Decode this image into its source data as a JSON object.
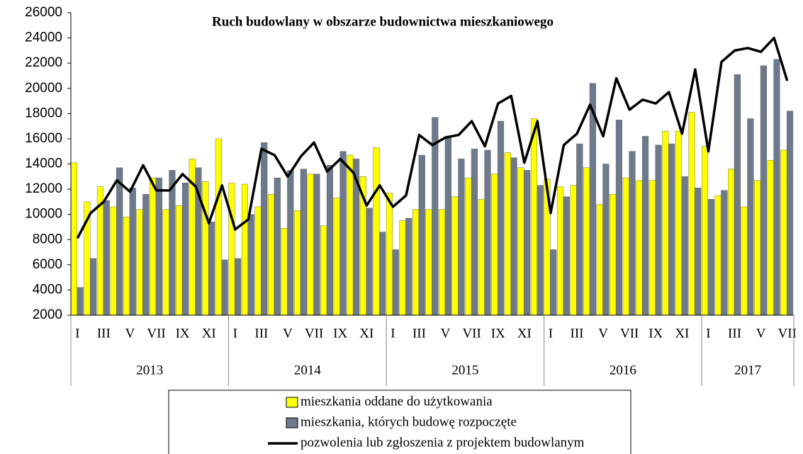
{
  "chart_data": {
    "type": "bar",
    "title": "Ruch budowlany w obszarze budownictwa mieszkaniowego",
    "categories": [
      "I",
      null,
      "III",
      null,
      "V",
      null,
      "VII",
      null,
      "IX",
      null,
      "XI",
      null,
      "I",
      null,
      "III",
      null,
      "V",
      null,
      "VII",
      null,
      "IX",
      null,
      "XI",
      null,
      "I",
      null,
      "III",
      null,
      "V",
      null,
      "VII",
      null,
      "IX",
      null,
      "XI",
      null,
      "I",
      null,
      "III",
      null,
      "V",
      null,
      "VII",
      null,
      "IX",
      null,
      "XI",
      null,
      "I",
      null,
      "III",
      null,
      "V",
      null,
      "VII"
    ],
    "years": [
      "2013",
      "2014",
      "2015",
      "2016",
      "2017"
    ],
    "series": [
      {
        "name": "mieszkania oddane do użytkowania",
        "color": "#ffff00",
        "values": [
          14100,
          11000,
          12200,
          10600,
          9800,
          10400,
          12900,
          10400,
          10700,
          14400,
          12600,
          16000,
          12500,
          12400,
          10600,
          11600,
          8900,
          10300,
          13200,
          9100,
          11300,
          14700,
          13000,
          15300,
          11700,
          9500,
          10400,
          10400,
          10400,
          11400,
          12900,
          11200,
          13200,
          14900,
          13700,
          17600,
          12800,
          12200,
          12300,
          13700,
          10800,
          11600,
          12900,
          12700,
          12700,
          16600,
          16600,
          18100,
          15400,
          11500,
          13600,
          10600,
          12700,
          14300,
          15100
        ]
      },
      {
        "name": "mieszkania, których budowę rozpoczęte",
        "color": "#6e7a8c",
        "values": [
          4200,
          6500,
          11100,
          13700,
          12100,
          11600,
          12900,
          13500,
          12500,
          13700,
          9400,
          6400,
          6500,
          10000,
          15700,
          12900,
          13500,
          13600,
          13200,
          13900,
          15000,
          14400,
          10500,
          8600,
          7200,
          9700,
          14700,
          17700,
          16100,
          14400,
          15200,
          15100,
          17400,
          14500,
          13500,
          12300,
          7200,
          11400,
          15600,
          20400,
          14000,
          17500,
          15000,
          16200,
          15500,
          15600,
          13000,
          12100,
          11200,
          11900,
          21100,
          17600,
          21800,
          22300,
          18200
        ]
      },
      {
        "name": "pozwolenia lub zgłoszenia z projektem budowlanym",
        "color": "#000000",
        "type": "line",
        "values": [
          8100,
          10100,
          11000,
          12700,
          11800,
          13900,
          11900,
          11900,
          13200,
          12200,
          9300,
          12300,
          8800,
          9600,
          15200,
          14700,
          13000,
          14600,
          15700,
          13400,
          14400,
          13300,
          10700,
          12300,
          10600,
          11500,
          16300,
          15500,
          16100,
          16300,
          17400,
          15400,
          18800,
          19400,
          14100,
          17400,
          10100,
          15500,
          16400,
          18700,
          16200,
          20800,
          18300,
          19100,
          18800,
          19700,
          16400,
          21500,
          15000,
          22100,
          23000,
          23200,
          22900,
          24000,
          20600
        ]
      }
    ],
    "ylim": [
      2000,
      26000
    ],
    "yticks": [
      2000,
      4000,
      6000,
      8000,
      10000,
      12000,
      14000,
      16000,
      18000,
      20000,
      22000,
      24000,
      26000
    ],
    "grid": false
  }
}
